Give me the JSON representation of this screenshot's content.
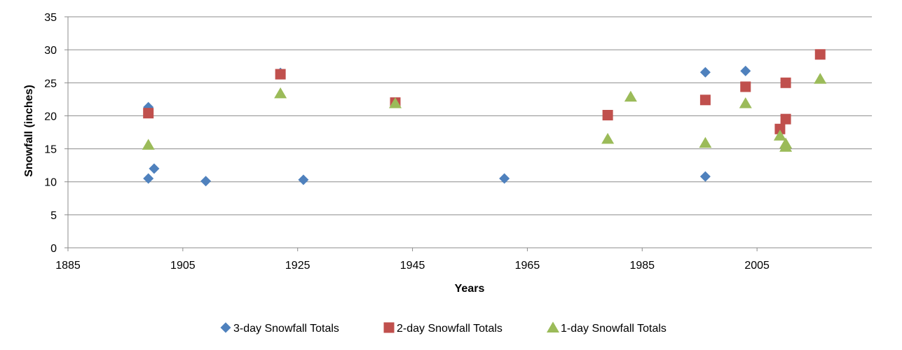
{
  "chart_data": {
    "type": "scatter",
    "title": "",
    "xlabel": "Years",
    "ylabel": "Snowfall (inches)",
    "xlim": [
      1885,
      2025
    ],
    "ylim": [
      0,
      35
    ],
    "xticks": [
      1885,
      1905,
      1925,
      1945,
      1965,
      1985,
      2005
    ],
    "yticks": [
      0,
      5,
      10,
      15,
      20,
      25,
      30,
      35
    ],
    "grid": "horizontal",
    "legend_position": "bottom",
    "series": [
      {
        "name": "3-day Snowfall Totals",
        "marker": "diamond",
        "color": "#4f81bd",
        "points": [
          {
            "x": 1899,
            "y": 21.3
          },
          {
            "x": 1899,
            "y": 10.5
          },
          {
            "x": 1900,
            "y": 12.0
          },
          {
            "x": 1909,
            "y": 10.1
          },
          {
            "x": 1922,
            "y": 26.5
          },
          {
            "x": 1926,
            "y": 10.3
          },
          {
            "x": 1942,
            "y": 22.0
          },
          {
            "x": 1961,
            "y": 10.5
          },
          {
            "x": 1996,
            "y": 26.6
          },
          {
            "x": 1996,
            "y": 10.8
          },
          {
            "x": 2003,
            "y": 26.8
          }
        ]
      },
      {
        "name": "2-day Snowfall Totals",
        "marker": "square",
        "color": "#c0504d",
        "points": [
          {
            "x": 1899,
            "y": 20.4
          },
          {
            "x": 1922,
            "y": 26.3
          },
          {
            "x": 1942,
            "y": 22.0
          },
          {
            "x": 1979,
            "y": 20.1
          },
          {
            "x": 1996,
            "y": 22.4
          },
          {
            "x": 2003,
            "y": 24.4
          },
          {
            "x": 2009,
            "y": 18.0
          },
          {
            "x": 2010,
            "y": 25.0
          },
          {
            "x": 2010,
            "y": 19.5
          },
          {
            "x": 2016,
            "y": 29.3
          }
        ]
      },
      {
        "name": "1-day Snowfall Totals",
        "marker": "triangle",
        "color": "#9bbb59",
        "points": [
          {
            "x": 1899,
            "y": 15.6
          },
          {
            "x": 1922,
            "y": 23.4
          },
          {
            "x": 1942,
            "y": 21.9
          },
          {
            "x": 1979,
            "y": 16.5
          },
          {
            "x": 1983,
            "y": 22.9
          },
          {
            "x": 1996,
            "y": 15.9
          },
          {
            "x": 2003,
            "y": 21.9
          },
          {
            "x": 2009,
            "y": 17.0
          },
          {
            "x": 2010,
            "y": 15.8
          },
          {
            "x": 2010,
            "y": 15.3
          },
          {
            "x": 2016,
            "y": 25.6
          }
        ]
      }
    ]
  }
}
